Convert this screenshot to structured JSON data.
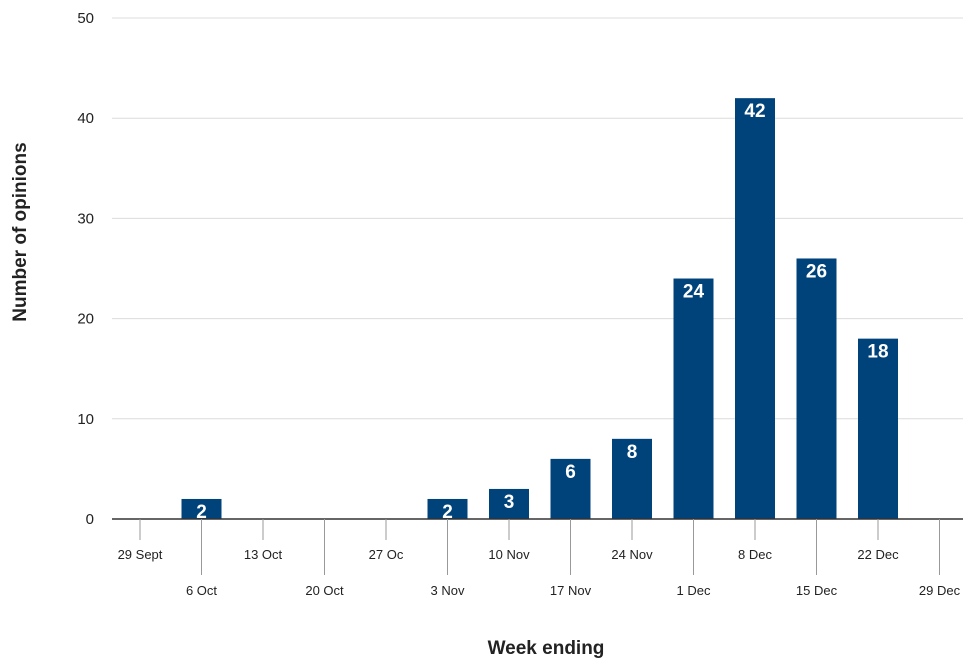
{
  "chart_data": {
    "type": "bar",
    "title": "",
    "xlabel": "Week ending",
    "ylabel": "Number of opinions",
    "ylim": [
      0,
      50
    ],
    "yticks": [
      0,
      10,
      20,
      30,
      40,
      50
    ],
    "grid": true,
    "legend": "none",
    "bar_color": "#00427a",
    "categories": [
      "29 Sept",
      "6 Oct",
      "13 Oct",
      "20 Oct",
      "27 Oc",
      "3 Nov",
      "10 Nov",
      "17 Nov",
      "24 Nov",
      "1 Dec",
      "8 Dec",
      "15 Dec",
      "22 Dec",
      "29 Dec"
    ],
    "values": [
      0,
      2,
      0,
      0,
      0,
      2,
      3,
      6,
      8,
      24,
      42,
      26,
      18,
      0
    ],
    "data_labels": [
      "",
      "2",
      "",
      "",
      "",
      "2",
      "3",
      "6",
      "8",
      "24",
      "42",
      "26",
      "18",
      ""
    ]
  }
}
